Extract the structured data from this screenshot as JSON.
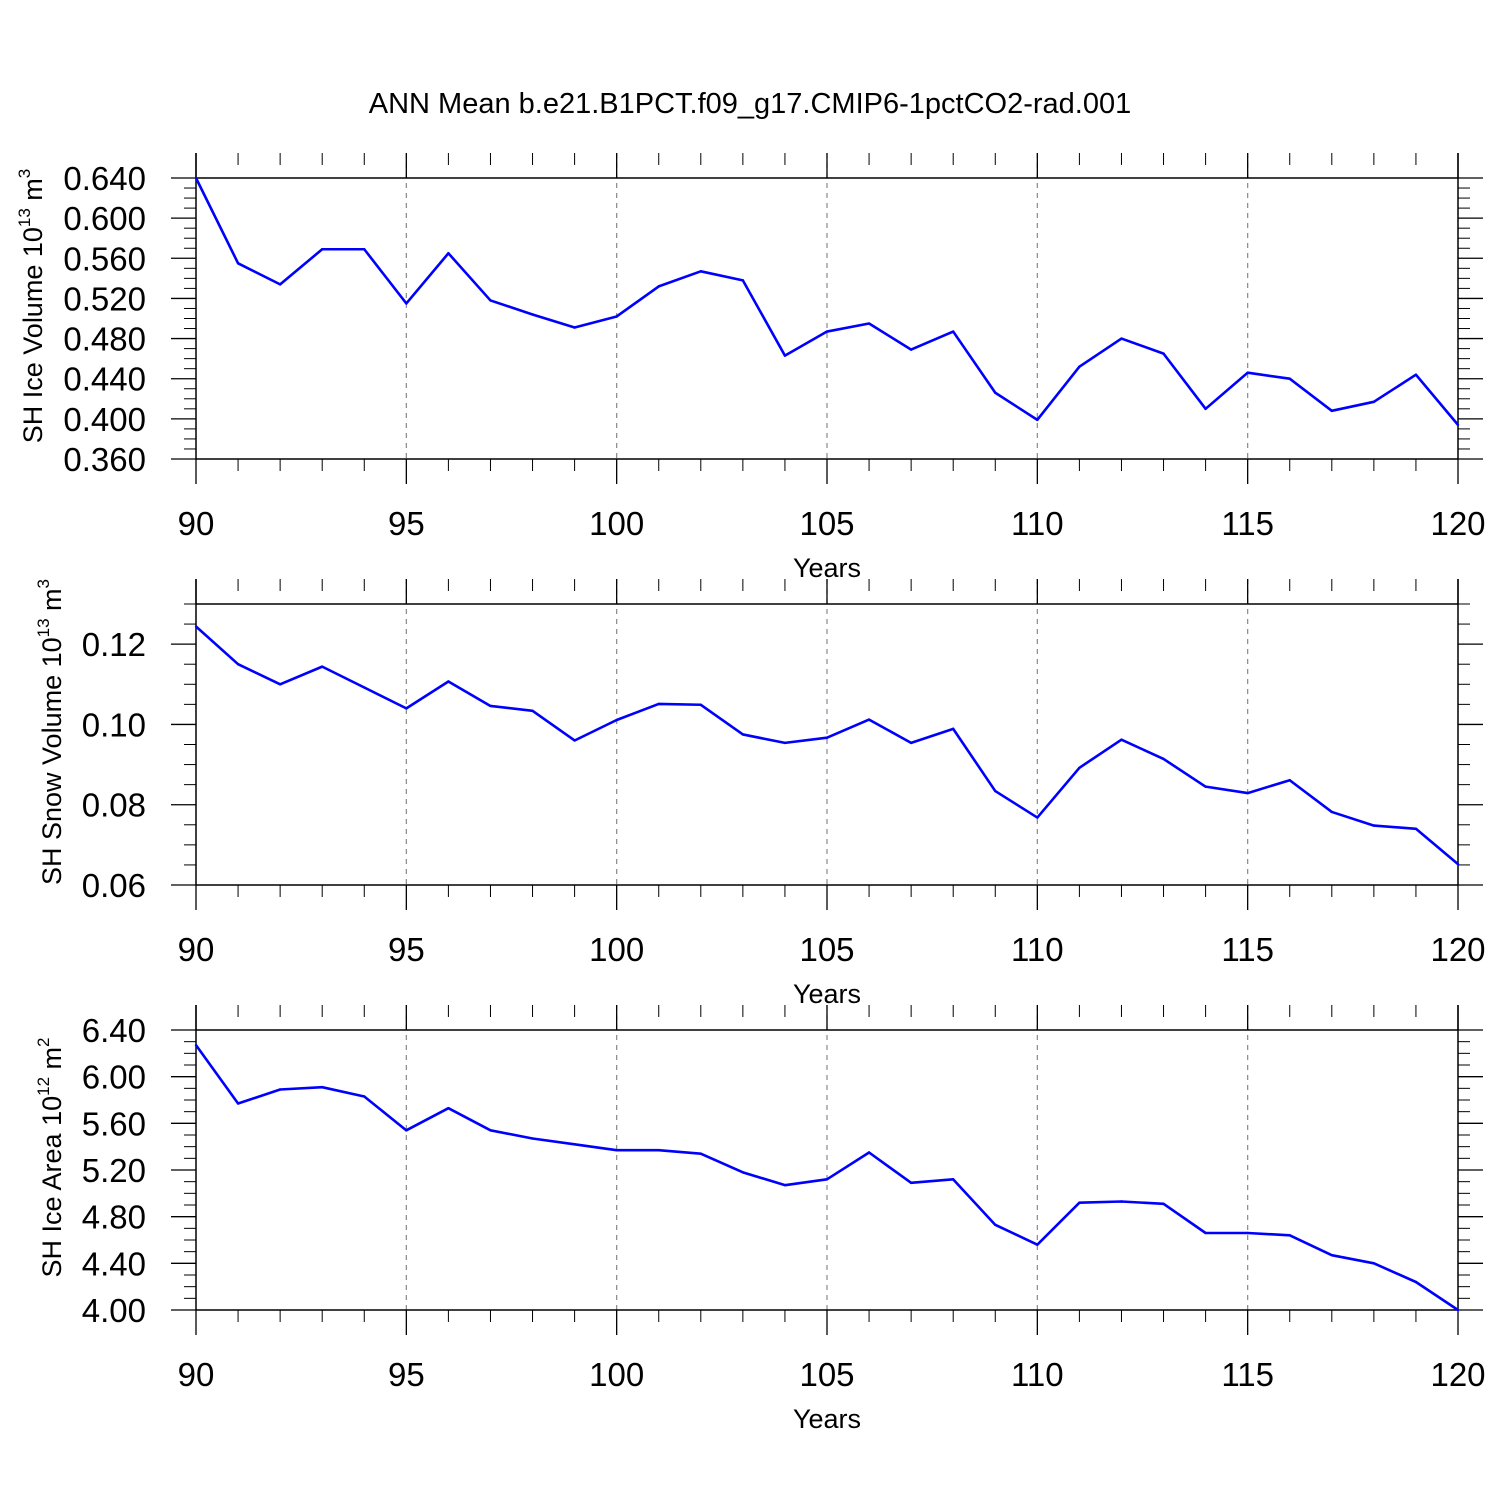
{
  "title": "ANN Mean b.e21.B1PCT.f09_g17.CMIP6-1pctCO2-rad.001",
  "colors": {
    "line": "#0000ff",
    "axis": "#000000",
    "grid": "#888888"
  },
  "chart_data": [
    {
      "type": "line",
      "ylabel": "SH Ice Volume 10",
      "ylabel_exp": "13",
      "ylabel_unit": "m",
      "ylabel_unit_exp": "3",
      "xlabel": "Years",
      "xlim": [
        90,
        120
      ],
      "ylim": [
        0.36,
        0.64
      ],
      "x_ticks": [
        90,
        95,
        100,
        105,
        110,
        115,
        120
      ],
      "x_tick_labels": [
        "90",
        "95",
        "100",
        "105",
        "110",
        "115",
        "120"
      ],
      "y_ticks": [
        0.36,
        0.4,
        0.44,
        0.48,
        0.52,
        0.56,
        0.6,
        0.64
      ],
      "y_tick_labels": [
        "0.360",
        "0.400",
        "0.440",
        "0.480",
        "0.520",
        "0.560",
        "0.600",
        "0.640"
      ],
      "x_minor_step": 1,
      "y_minor_step": 0.01,
      "grid": "vertical dashed at major x ticks",
      "series": [
        {
          "x": [
            90,
            91,
            92,
            93,
            94,
            95,
            96,
            97,
            98,
            99,
            100,
            101,
            102,
            103,
            104,
            105,
            106,
            107,
            108,
            109,
            110,
            111,
            112,
            113,
            114,
            115,
            116,
            117,
            118,
            119,
            120
          ],
          "values": [
            0.64,
            0.555,
            0.534,
            0.569,
            0.569,
            0.515,
            0.565,
            0.518,
            0.504,
            0.491,
            0.502,
            0.532,
            0.547,
            0.538,
            0.463,
            0.487,
            0.495,
            0.469,
            0.487,
            0.426,
            0.399,
            0.452,
            0.48,
            0.465,
            0.41,
            0.446,
            0.44,
            0.408,
            0.417,
            0.444,
            0.394
          ]
        }
      ]
    },
    {
      "type": "line",
      "ylabel": "SH Snow Volume 10",
      "ylabel_exp": "13",
      "ylabel_unit": "m",
      "ylabel_unit_exp": "3",
      "xlabel": "Years",
      "xlim": [
        90,
        120
      ],
      "ylim": [
        0.06,
        0.13
      ],
      "x_ticks": [
        90,
        95,
        100,
        105,
        110,
        115,
        120
      ],
      "x_tick_labels": [
        "90",
        "95",
        "100",
        "105",
        "110",
        "115",
        "120"
      ],
      "y_ticks": [
        0.06,
        0.08,
        0.1,
        0.12
      ],
      "y_tick_labels": [
        "0.06",
        "0.08",
        "0.10",
        "0.12"
      ],
      "x_minor_step": 1,
      "y_minor_step": 0.005,
      "grid": "vertical dashed at major x ticks",
      "series": [
        {
          "x": [
            90,
            91,
            92,
            93,
            94,
            95,
            96,
            97,
            98,
            99,
            100,
            101,
            102,
            103,
            104,
            105,
            106,
            107,
            108,
            109,
            110,
            111,
            112,
            113,
            114,
            115,
            116,
            117,
            118,
            119,
            120
          ],
          "values": [
            0.1244,
            0.115,
            0.11,
            0.1144,
            0.1092,
            0.104,
            0.1107,
            0.1046,
            0.1034,
            0.096,
            0.1011,
            0.1051,
            0.1049,
            0.0975,
            0.0954,
            0.0967,
            0.1012,
            0.0954,
            0.0989,
            0.0834,
            0.0768,
            0.0892,
            0.0962,
            0.0914,
            0.0845,
            0.0829,
            0.0861,
            0.0782,
            0.0748,
            0.074,
            0.0652
          ]
        }
      ]
    },
    {
      "type": "line",
      "ylabel": "SH Ice Area 10",
      "ylabel_exp": "12",
      "ylabel_unit": "m",
      "ylabel_unit_exp": "2",
      "xlabel": "Years",
      "xlim": [
        90,
        120
      ],
      "ylim": [
        4.0,
        6.4
      ],
      "x_ticks": [
        90,
        95,
        100,
        105,
        110,
        115,
        120
      ],
      "x_tick_labels": [
        "90",
        "95",
        "100",
        "105",
        "110",
        "115",
        "120"
      ],
      "y_ticks": [
        4.0,
        4.4,
        4.8,
        5.2,
        5.6,
        6.0,
        6.4
      ],
      "y_tick_labels": [
        "4.00",
        "4.40",
        "4.80",
        "5.20",
        "5.60",
        "6.00",
        "6.40"
      ],
      "x_minor_step": 1,
      "y_minor_step": 0.1,
      "grid": "vertical dashed at major x ticks",
      "series": [
        {
          "x": [
            90,
            91,
            92,
            93,
            94,
            95,
            96,
            97,
            98,
            99,
            100,
            101,
            102,
            103,
            104,
            105,
            106,
            107,
            108,
            109,
            110,
            111,
            112,
            113,
            114,
            115,
            116,
            117,
            118,
            119,
            120
          ],
          "values": [
            6.27,
            5.77,
            5.89,
            5.91,
            5.83,
            5.54,
            5.73,
            5.54,
            5.47,
            5.42,
            5.37,
            5.37,
            5.34,
            5.18,
            5.07,
            5.12,
            5.35,
            5.09,
            5.12,
            4.73,
            4.56,
            4.92,
            4.93,
            4.91,
            4.66,
            4.66,
            4.64,
            4.47,
            4.4,
            4.24,
            4.0
          ]
        }
      ]
    }
  ]
}
